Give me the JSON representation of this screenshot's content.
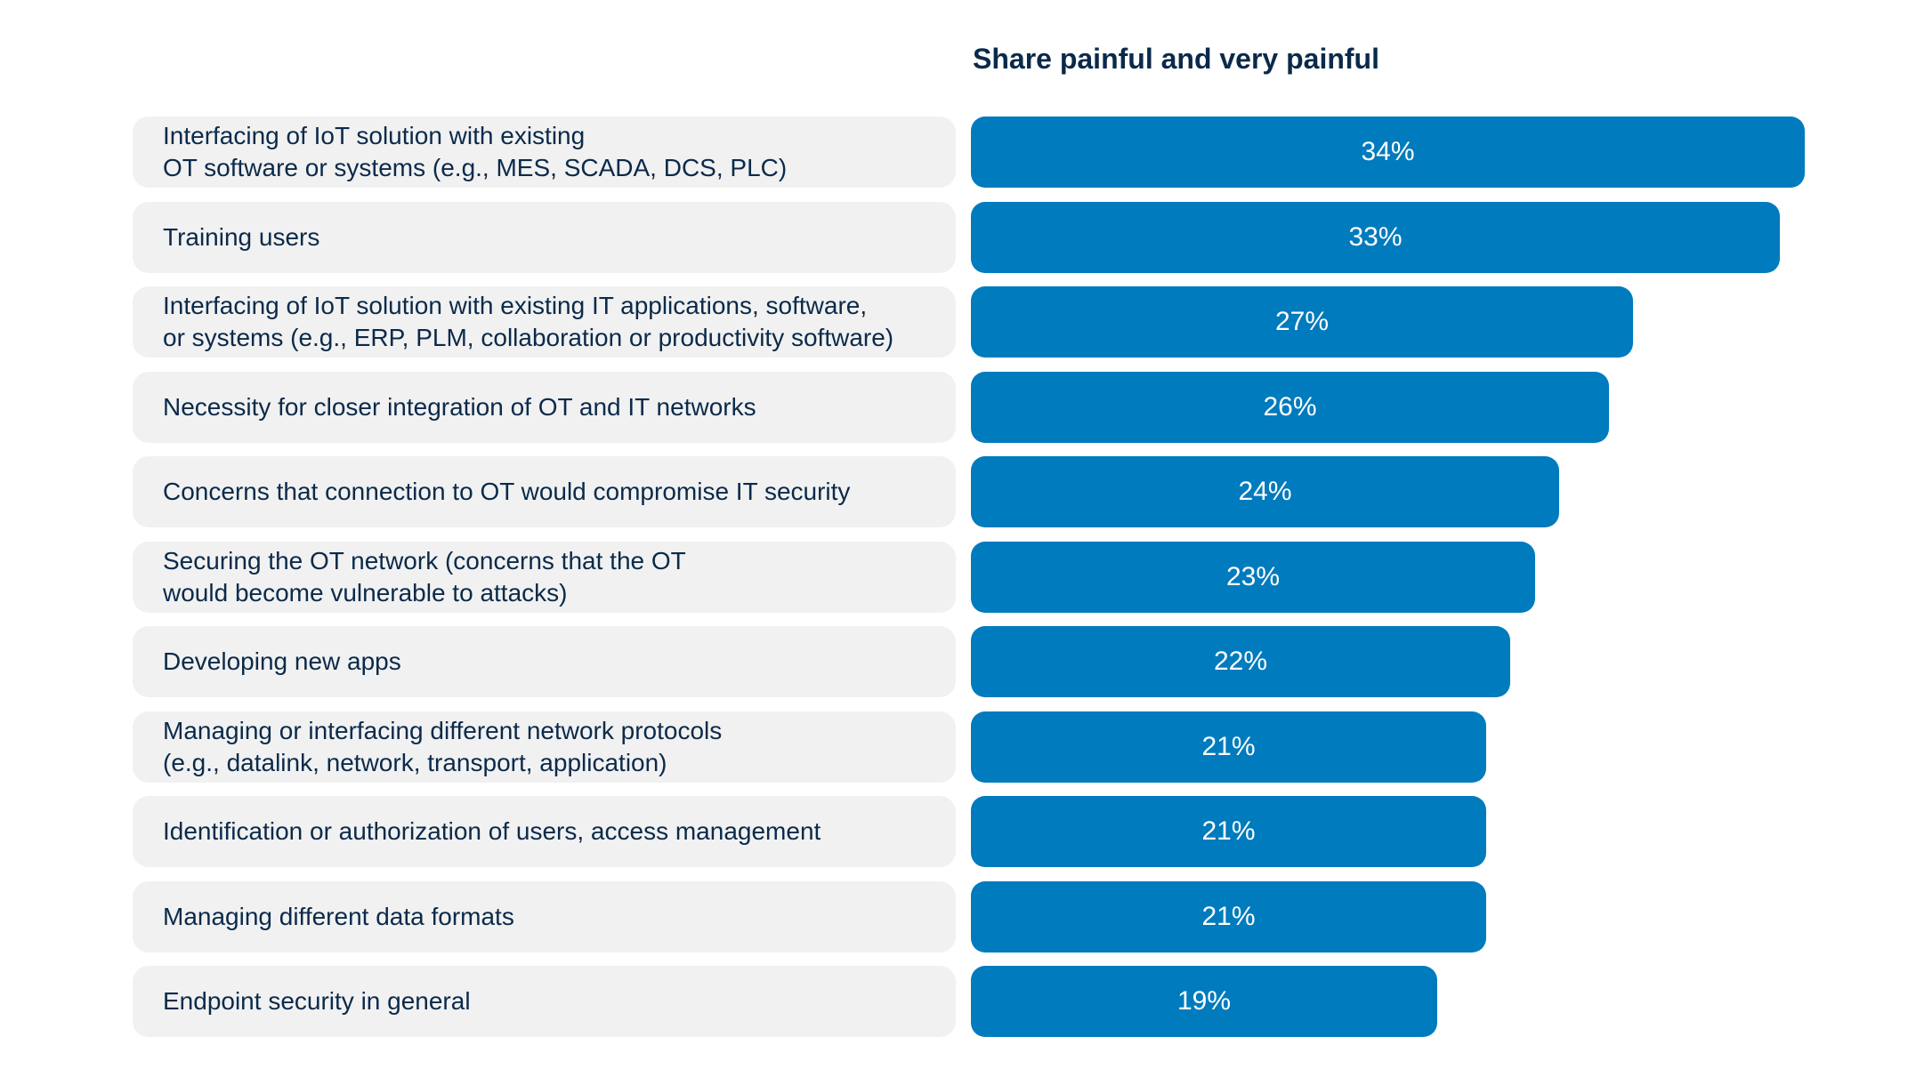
{
  "chart_data": {
    "type": "bar",
    "orientation": "horizontal",
    "title": "Share painful and very painful",
    "xlabel": "",
    "ylabel": "",
    "xlim": [
      0,
      34
    ],
    "legend": "none",
    "grid": false,
    "bar_color": "#007bbd",
    "label_box_color": "#f1f1f1",
    "categories": [
      "Interfacing of IoT solution with existing\nOT software or systems (e.g., MES, SCADA, DCS, PLC)",
      "Training users",
      "Interfacing of IoT solution with existing IT applications, software,\nor systems (e.g., ERP, PLM, collaboration or productivity software)",
      "Necessity for closer integration of OT and IT networks",
      "Concerns that connection to OT would compromise IT security",
      "Securing the OT network (concerns that the OT\nwould become vulnerable to attacks)",
      "Developing new apps",
      "Managing or interfacing different network protocols\n(e.g., datalink, network, transport, application)",
      "Identification or authorization of users, access management",
      "Managing different data formats",
      "Endpoint security in general"
    ],
    "values": [
      34,
      33,
      27,
      26,
      24,
      23,
      22,
      21,
      21,
      21,
      19
    ],
    "value_labels": [
      "34%",
      "33%",
      "27%",
      "26%",
      "24%",
      "23%",
      "22%",
      "21%",
      "21%",
      "21%",
      "19%"
    ]
  }
}
